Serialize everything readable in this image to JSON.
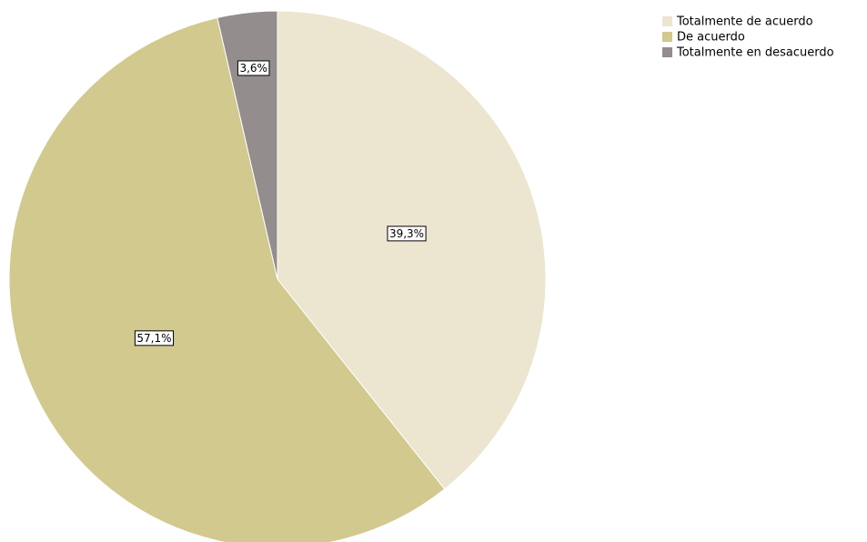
{
  "chart_data": {
    "type": "pie",
    "categories": [
      "Totalmente de acuerdo",
      "De acuerdo",
      "Totalmente en desacuerdo"
    ],
    "values": [
      39.3,
      57.1,
      3.6
    ],
    "value_labels": [
      "39,3%",
      "57,1%",
      "3,6%"
    ],
    "colors": [
      "#ece5cf",
      "#d1c98e",
      "#938d8d"
    ],
    "legend": "top-right"
  }
}
